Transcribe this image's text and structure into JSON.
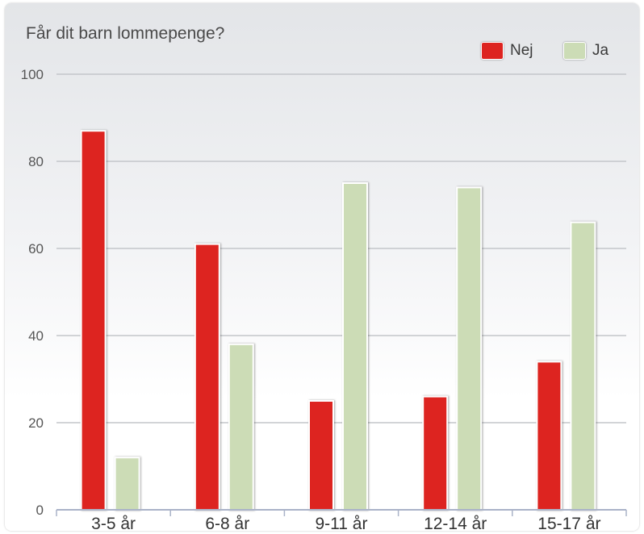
{
  "chart_data": {
    "type": "bar",
    "title": "Får dit barn lommepenge?",
    "categories": [
      "3-5 år",
      "6-8 år",
      "9-11 år",
      "12-14 år",
      "15-17 år"
    ],
    "series": [
      {
        "name": "Nej",
        "color": "#dd2420",
        "values": [
          87,
          61,
          25,
          26,
          34
        ]
      },
      {
        "name": "Ja",
        "color": "#ccdcb6",
        "values": [
          12,
          38,
          75,
          74,
          66
        ]
      }
    ],
    "ylim": [
      0,
      100
    ],
    "yticks": [
      "0",
      "20",
      "40",
      "60",
      "80",
      "100"
    ],
    "grid": true,
    "legend_position": "top-right",
    "xlabel": "",
    "ylabel": ""
  }
}
